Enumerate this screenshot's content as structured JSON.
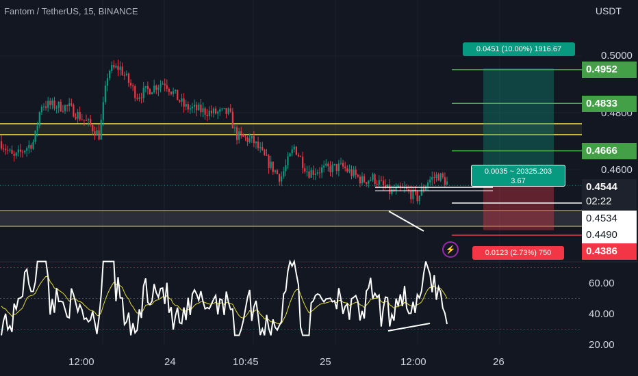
{
  "header": {
    "title": "Fantom / TetherUS, 15, BINANCE",
    "currency": "USDT"
  },
  "price_axis": {
    "labels": [
      "0.5000",
      "0.4800",
      "0.4600"
    ],
    "tags": {
      "tp3": "0.4952",
      "tp2": "0.4833",
      "tp1": "0.4666",
      "current_price": "0.4544",
      "countdown": "02:22",
      "level_a": "0.4534",
      "level_b": "0.4490",
      "stop": "0.4386"
    }
  },
  "position": {
    "target_label": "0.0451 (10.00%) 1916.67",
    "entry_label_line1": "0.0035 ~ 20325.203",
    "entry_label_line2": "3.67",
    "stop_label": "0.0123 (2.73%) 750"
  },
  "rsi_axis": {
    "labels": [
      "60.00",
      "40.00",
      "20.00"
    ]
  },
  "time_axis": {
    "labels": [
      "12:00",
      "24",
      "10:45",
      "25",
      "12:00",
      "26"
    ]
  },
  "colors": {
    "background": "#131722",
    "up": "#089981",
    "down": "#f23645",
    "support_zone": "#ffeb3b",
    "target_line": "#4caf50",
    "rsi": "#ffffff",
    "rsi_ma": "#e6e13a"
  },
  "icons": {
    "alert": "lightning-icon"
  },
  "chart_data": {
    "type": "candlestick",
    "pair": "FTM/USDT",
    "interval": "15",
    "ylim": [
      0.436,
      0.503
    ],
    "levels": {
      "tp3": 0.4952,
      "tp2": 0.4833,
      "tp1": 0.4666,
      "entry": 0.4544,
      "level_a": 0.4534,
      "level_b": 0.449,
      "stop": 0.4386
    },
    "rsi_ticks": [
      20,
      40,
      60
    ]
  }
}
